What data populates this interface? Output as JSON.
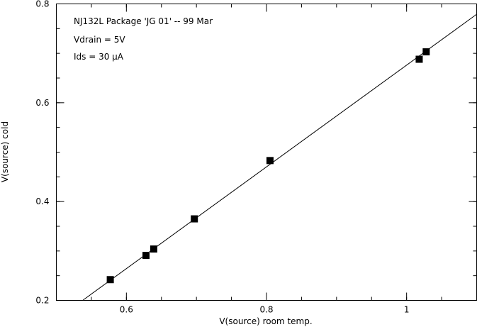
{
  "chart_data": {
    "type": "scatter",
    "annotations": [
      "NJ132L Package 'JG 01' -- 99 Mar",
      "Vdrain = 5V",
      "Ids = 30 µA"
    ],
    "xlabel": "V(source) room temp.",
    "ylabel": "V(source) cold",
    "xlim": [
      0.5,
      1.1
    ],
    "ylim": [
      0.2,
      0.8
    ],
    "x_ticks": [
      0.6,
      0.8,
      1.0
    ],
    "x_tick_labels": [
      "0.6",
      "0.8",
      "1"
    ],
    "y_ticks": [
      0.2,
      0.4,
      0.6,
      0.8
    ],
    "y_tick_labels": [
      "0.2",
      "0.4",
      "0.6",
      "0.8"
    ],
    "grid": false,
    "series": [
      {
        "marker": "filled-square",
        "x": [
          0.577,
          0.628,
          0.639,
          0.697,
          0.805,
          1.018,
          1.028
        ],
        "y": [
          0.242,
          0.291,
          0.304,
          0.365,
          0.483,
          0.688,
          0.703
        ]
      }
    ],
    "fit_line": {
      "x": [
        0.5375,
        1.1
      ],
      "y": [
        0.2,
        0.779
      ]
    }
  }
}
